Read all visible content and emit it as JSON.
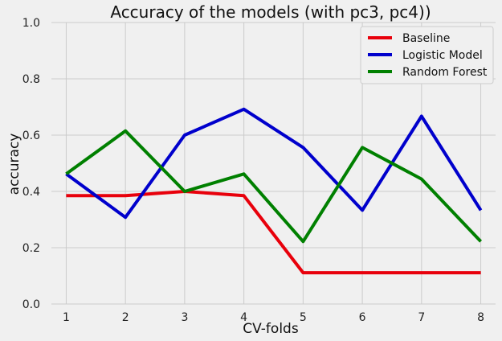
{
  "chart_data": {
    "type": "line",
    "title": "Accuracy of the models (with pc3, pc4))",
    "xlabel": "CV-folds",
    "ylabel": "accuracy",
    "x": [
      1,
      2,
      3,
      4,
      5,
      6,
      7,
      8
    ],
    "x_ticks": [
      "1",
      "2",
      "3",
      "4",
      "5",
      "6",
      "7",
      "8"
    ],
    "y_ticks": [
      "0.0",
      "0.2",
      "0.4",
      "0.6",
      "0.8",
      "1.0"
    ],
    "ylim": [
      0,
      1
    ],
    "xlim": [
      0.75,
      8.25
    ],
    "grid": true,
    "legend_position": "top-right",
    "series": [
      {
        "name": "Baseline",
        "color": "#e8000b",
        "values": [
          0.385,
          0.385,
          0.4,
          0.385,
          0.111,
          0.111,
          0.111,
          0.111
        ]
      },
      {
        "name": "Logistic Model",
        "color": "#0000cc",
        "values": [
          0.462,
          0.308,
          0.6,
          0.692,
          0.556,
          0.333,
          0.667,
          0.333
        ]
      },
      {
        "name": "Random Forest",
        "color": "#008000",
        "values": [
          0.462,
          0.615,
          0.4,
          0.462,
          0.222,
          0.556,
          0.444,
          0.222
        ]
      }
    ]
  }
}
